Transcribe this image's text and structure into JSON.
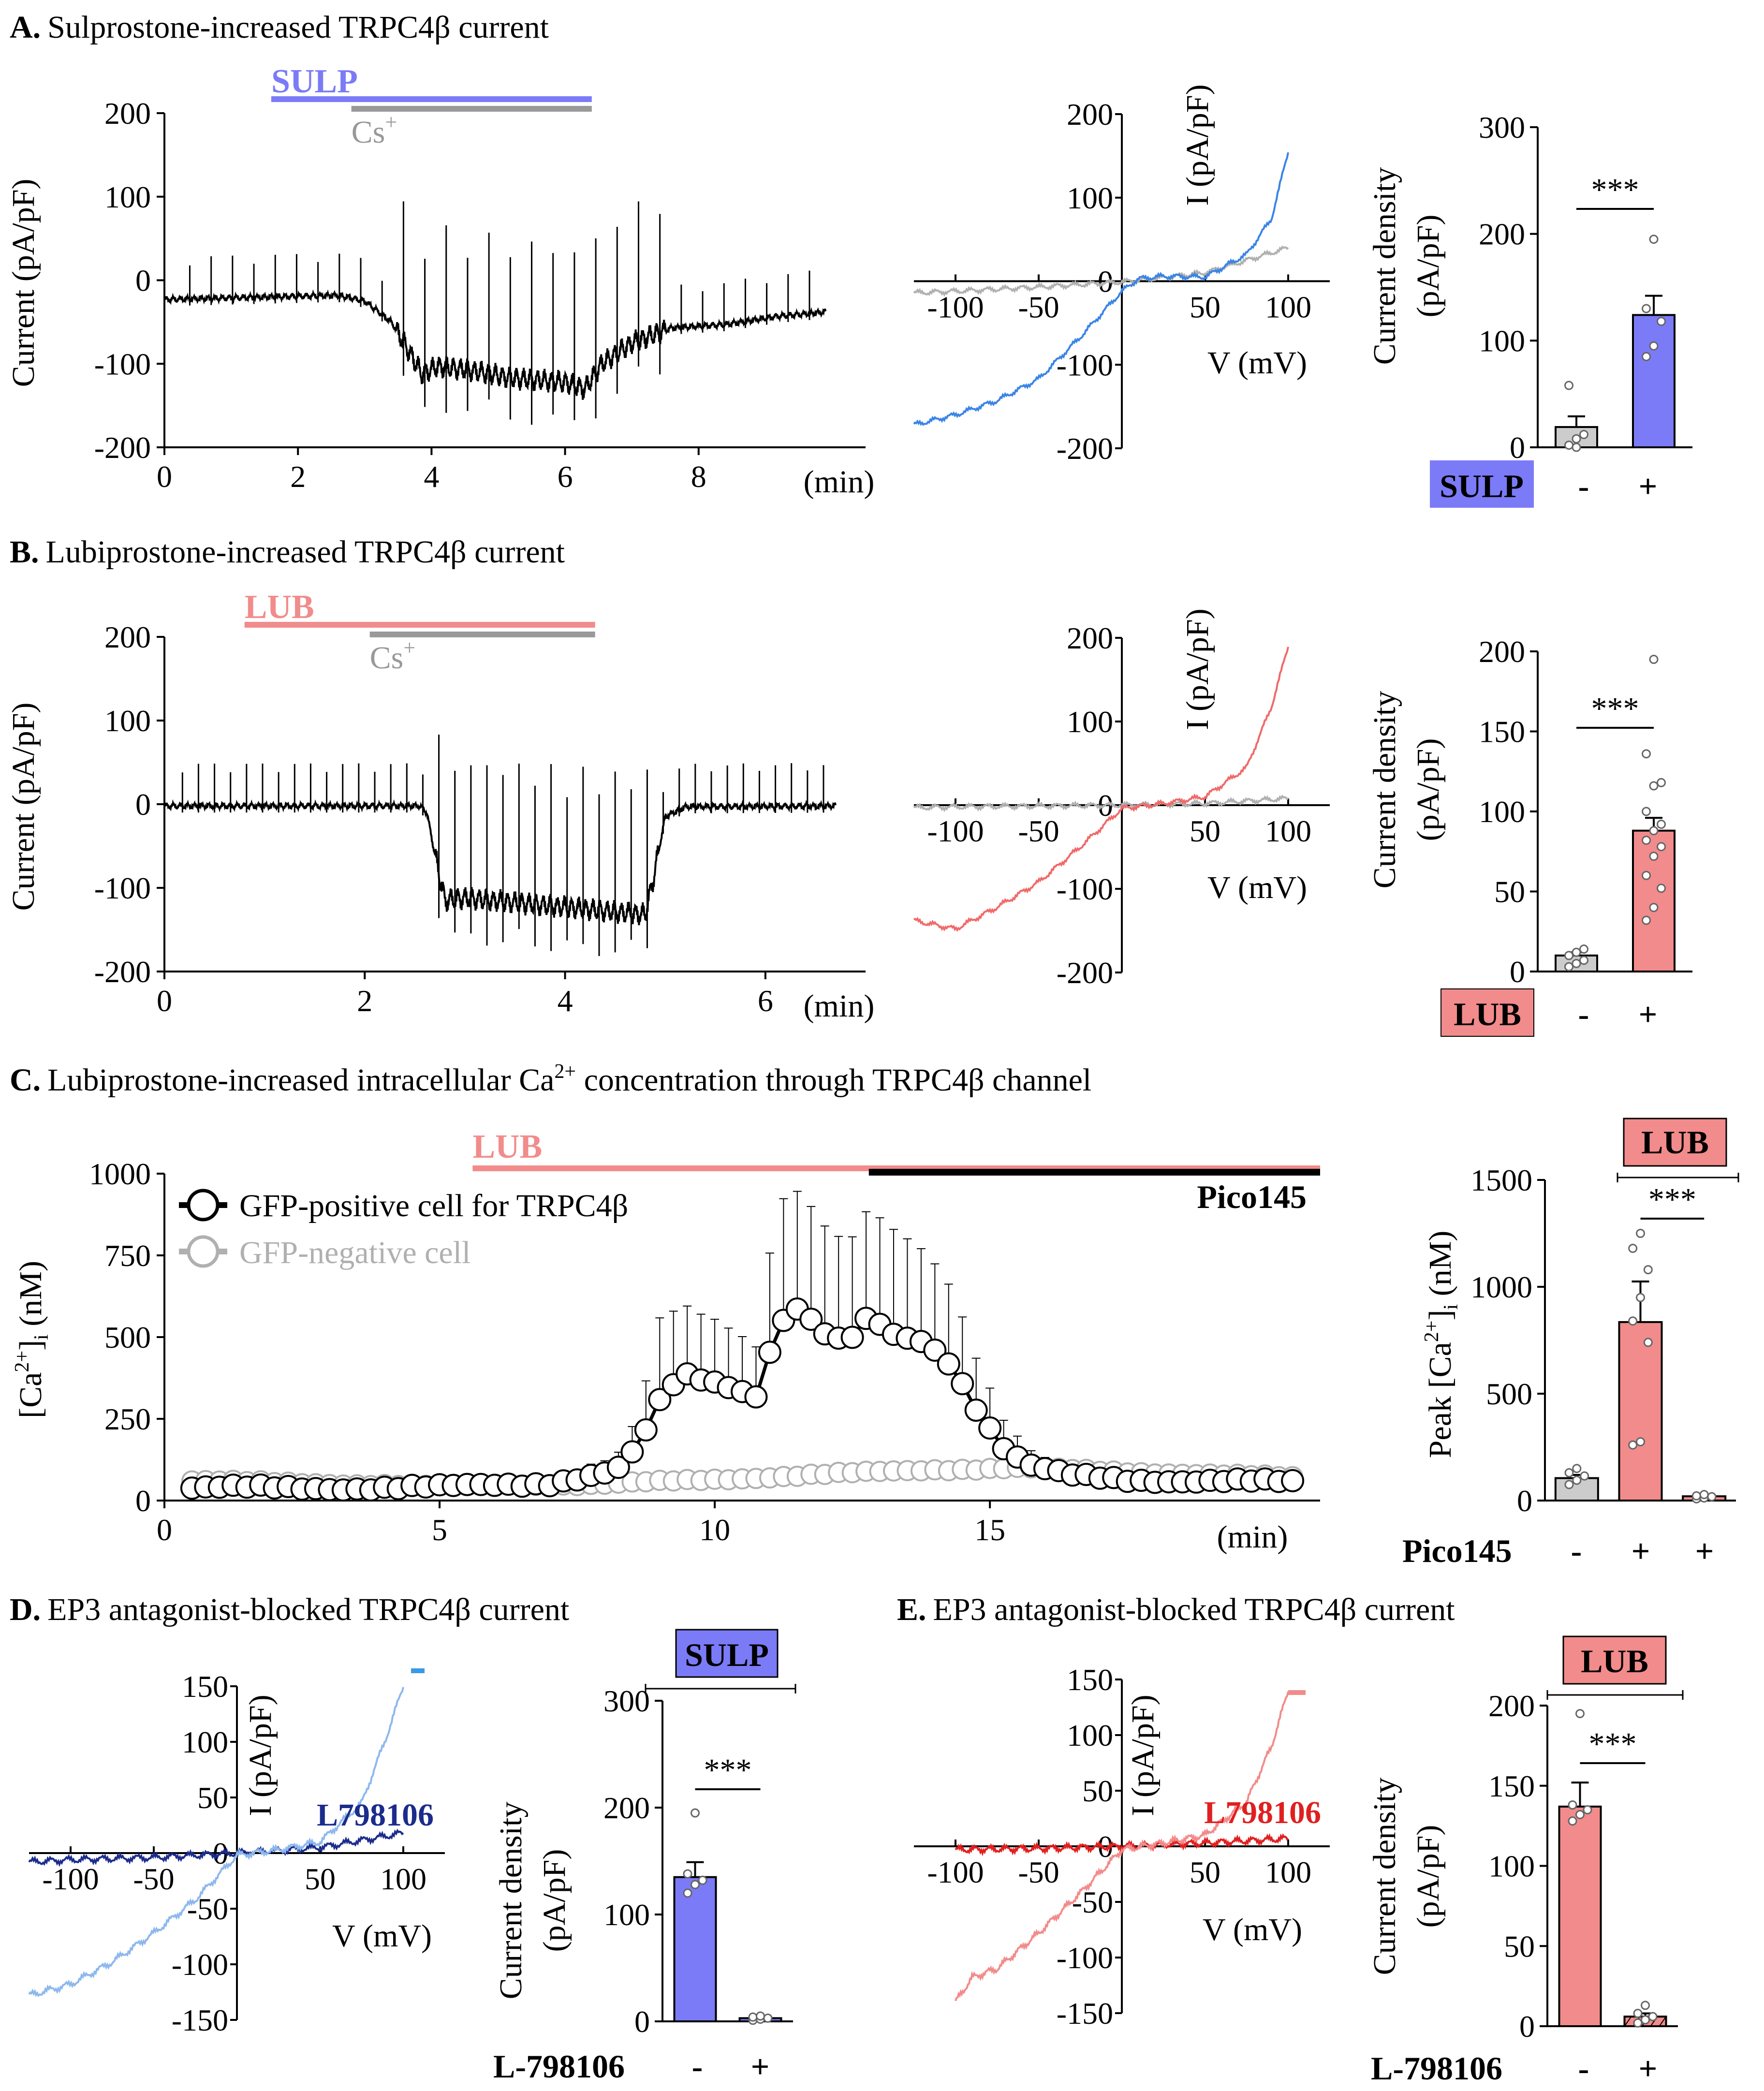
{
  "colors": {
    "sulp": "#7b7bf7",
    "sulp_trace": "#3a84e6",
    "lub": "#f28b8b",
    "lub_trace": "#f06a6a",
    "cs": "#999999",
    "black": "#000000",
    "gray_trace": "#b0b0b0",
    "gray_bar": "#cccccc",
    "navy": "#1c2c8c",
    "red_label": "#e02020",
    "light_trace": "#8db8ee"
  },
  "panels": {
    "A": {
      "letter": "A.",
      "title": "Sulprostone-increased TRPC4β current",
      "drug": "SULP",
      "cs": "Cs",
      "cs_sup": "+"
    },
    "B": {
      "letter": "B.",
      "title": "Lubiprostone-increased TRPC4β current",
      "drug": "LUB",
      "cs": "Cs",
      "cs_sup": "+"
    },
    "C": {
      "letter": "C.",
      "title_pre": "Lubiprostone-increased intracellular Ca",
      "title_sup": "2+",
      "title_post": " concentration through TRPC4β channel",
      "drug": "LUB",
      "inhibitor": "Pico145",
      "legend_pos": "GFP-positive cell for TRPC4β",
      "legend_neg": "GFP-negative cell"
    },
    "D": {
      "letter": "D.",
      "title": "EP3 antagonist-blocked TRPC4β current",
      "antagonist": "L798106",
      "box_label": "SULP"
    },
    "E": {
      "letter": "E.",
      "title": "EP3 antagonist-blocked TRPC4β current",
      "antagonist": "L798106",
      "box_label": "LUB"
    }
  },
  "axis_text": {
    "current_ylabel": "Current (pA/pF)",
    "iv_ylabel": "I (pA/pF)",
    "iv_xlabel": "V (mV)",
    "time_unit": "(min)",
    "density_l1": "Current density",
    "density_l2": "(pA/pF)",
    "ca_ylabel_pre": "[Ca",
    "ca_ylabel_sup": "2+",
    "ca_ylabel_mid": "]",
    "ca_ylabel_sub": "i",
    "ca_ylabel_post": " (nM)",
    "peak_pre": "Peak [Ca",
    "peak_sup": "2+",
    "peak_mid": "]",
    "peak_sub": "i",
    "peak_post": " (nM)",
    "sig": "***",
    "minus": "-",
    "plus": "+",
    "sulp_tag": "SULP",
    "lub_tag": "LUB",
    "pico_tag": "Pico145",
    "l798_tag": "L-798106"
  },
  "chart_data": [
    {
      "id": "A-trace",
      "type": "line",
      "title": "Sulprostone-increased TRPC4β current",
      "xlabel": "(min)",
      "ylabel": "Current (pA/pF)",
      "xlim": [
        0,
        10.5
      ],
      "ylim": [
        -200,
        200
      ],
      "xticks": [
        0,
        2,
        4,
        6,
        8
      ],
      "xticklabels": [
        "0",
        "2",
        "4",
        "6",
        "8"
      ],
      "yticks": [
        -200,
        -100,
        0,
        100,
        200
      ],
      "yticklabels": [
        "-200",
        "-100",
        "0",
        "100",
        "200"
      ],
      "bars": [
        {
          "label": "SULP",
          "x": [
            1.6,
            6.4
          ]
        },
        {
          "label": "Cs+",
          "x": [
            2.8,
            6.4
          ]
        }
      ],
      "baseline": [
        [
          0.0,
          -23
        ],
        [
          2.6,
          -18
        ],
        [
          3.0,
          -25
        ],
        [
          3.4,
          -50
        ],
        [
          3.7,
          -90
        ],
        [
          3.85,
          -112
        ],
        [
          4.1,
          -103
        ],
        [
          4.6,
          -108
        ],
        [
          5.2,
          -117
        ],
        [
          6.0,
          -122
        ],
        [
          6.3,
          -130
        ],
        [
          6.55,
          -100
        ],
        [
          7.0,
          -75
        ],
        [
          7.6,
          -57
        ],
        [
          8.4,
          -53
        ],
        [
          9.2,
          -43
        ],
        [
          9.9,
          -38
        ]
      ],
      "spike_period": 0.32,
      "spike_start": 0.38,
      "spike_end": 9.9
    },
    {
      "id": "A-iv",
      "type": "line",
      "xlabel": "V (mV)",
      "ylabel": "I (pA/pF)",
      "xlim": [
        -125,
        125
      ],
      "ylim": [
        -200,
        200
      ],
      "xticks": [
        -100,
        -50,
        50,
        100
      ],
      "xticklabels": [
        "-100",
        "-50",
        "50",
        "100"
      ],
      "yticks": [
        -200,
        -100,
        0,
        100,
        200
      ],
      "yticklabels": [
        "-200",
        "-100",
        "0",
        "100",
        "200"
      ],
      "series": [
        {
          "name": "SULP",
          "color": "#3a84e6",
          "x": [
            -125,
            -100,
            -75,
            -50,
            -25,
            0,
            10,
            25,
            50,
            75,
            90,
            100
          ],
          "y": [
            -172,
            -160,
            -143,
            -117,
            -67,
            -12,
            3,
            6,
            5,
            32,
            75,
            155
          ]
        },
        {
          "name": "Cs+",
          "color": "#b0b0b0",
          "x": [
            -125,
            -100,
            -50,
            0,
            50,
            100
          ],
          "y": [
            -14,
            -12,
            -7,
            -1,
            10,
            40
          ]
        }
      ]
    },
    {
      "id": "A-bar",
      "type": "bar",
      "ylabel": "Current density (pA/pF)",
      "ylim": [
        0,
        300
      ],
      "yticks": [
        0,
        100,
        200,
        300
      ],
      "yticklabels": [
        "0",
        "100",
        "200",
        "300"
      ],
      "categories": [
        "-",
        "+"
      ],
      "condition": "SULP",
      "values": [
        19,
        124
      ],
      "sem": [
        10,
        18
      ],
      "points": [
        [
          2,
          8,
          12,
          58,
          0
        ],
        [
          85,
          95,
          118,
          130,
          195
        ]
      ],
      "bar_colors": [
        "#cccccc",
        "#7b7bf7"
      ],
      "significance": "***"
    },
    {
      "id": "B-trace",
      "type": "line",
      "title": "Lubiprostone-increased TRPC4β current",
      "xlabel": "(min)",
      "ylabel": "Current (pA/pF)",
      "xlim": [
        0,
        7
      ],
      "ylim": [
        -200,
        200
      ],
      "xticks": [
        0,
        2,
        4,
        6
      ],
      "xticklabels": [
        "0",
        "2",
        "4",
        "6"
      ],
      "yticks": [
        -200,
        -100,
        0,
        100,
        200
      ],
      "yticklabels": [
        "-200",
        "-100",
        "0",
        "100",
        "200"
      ],
      "bars": [
        {
          "label": "LUB",
          "x": [
            0.8,
            4.3
          ]
        },
        {
          "label": "Cs+",
          "x": [
            2.05,
            4.3
          ]
        }
      ],
      "baseline": [
        [
          0,
          -2
        ],
        [
          2.55,
          -2
        ],
        [
          2.62,
          -10
        ],
        [
          2.7,
          -60
        ],
        [
          2.8,
          -115
        ],
        [
          3.0,
          -112
        ],
        [
          4.0,
          -123
        ],
        [
          4.8,
          -132
        ],
        [
          4.88,
          -90
        ],
        [
          5.0,
          -15
        ],
        [
          5.2,
          -3
        ],
        [
          6.8,
          -2
        ]
      ],
      "spike_period": 0.16,
      "spike_start": 0.18,
      "spike_end": 6.7
    },
    {
      "id": "B-iv",
      "type": "line",
      "xlabel": "V (mV)",
      "ylabel": "I (pA/pF)",
      "xlim": [
        -125,
        125
      ],
      "ylim": [
        -200,
        200
      ],
      "xticks": [
        -100,
        -50,
        50,
        100
      ],
      "xticklabels": [
        "-100",
        "-50",
        "50",
        "100"
      ],
      "yticks": [
        -200,
        -100,
        0,
        100,
        200
      ],
      "yticklabels": [
        "-200",
        "-100",
        "0",
        "100",
        "200"
      ],
      "series": [
        {
          "name": "LUB",
          "color": "#f06a6a",
          "x": [
            -125,
            -100,
            -75,
            -50,
            -25,
            0,
            25,
            50,
            75,
            90,
            100
          ],
          "y": [
            -138,
            -148,
            -122,
            -92,
            -50,
            -4,
            2,
            10,
            45,
            118,
            190
          ]
        },
        {
          "name": "Cs+",
          "color": "#b0b0b0",
          "x": [
            -125,
            -100,
            0,
            50,
            100
          ],
          "y": [
            -3,
            -2,
            0,
            2,
            8
          ]
        }
      ]
    },
    {
      "id": "B-bar",
      "type": "bar",
      "ylabel": "Current density (pA/pF)",
      "ylim": [
        0,
        200
      ],
      "yticks": [
        0,
        50,
        100,
        150,
        200
      ],
      "yticklabels": [
        "0",
        "50",
        "100",
        "150",
        "200"
      ],
      "categories": [
        "-",
        "+"
      ],
      "condition": "LUB",
      "values": [
        10,
        88
      ],
      "sem": [
        2,
        8
      ],
      "points": [
        [
          3,
          5,
          7,
          10,
          12,
          14
        ],
        [
          32,
          40,
          52,
          60,
          72,
          78,
          82,
          88,
          92,
          100,
          116,
          118,
          136,
          195
        ]
      ],
      "bar_colors": [
        "#cccccc",
        "#f28b8b"
      ],
      "significance": "***"
    },
    {
      "id": "C-trace",
      "type": "scatter",
      "title": "Lubiprostone-increased intracellular Ca2+ concentration through TRPC4β channel",
      "xlabel": "(min)",
      "ylabel": "[Ca2+]i (nM)",
      "xlim": [
        0,
        21
      ],
      "ylim": [
        0,
        1000
      ],
      "xticks": [
        0,
        5,
        10,
        15
      ],
      "xticklabels": [
        "0",
        "5",
        "10",
        "15"
      ],
      "yticks": [
        0,
        250,
        500,
        750,
        1000
      ],
      "yticklabels": [
        "0",
        "250",
        "500",
        "750",
        "1000"
      ],
      "bars": [
        {
          "label": "LUB",
          "x": [
            5.6,
            21
          ]
        },
        {
          "label": "Pico145",
          "x": [
            12.8,
            21
          ]
        }
      ],
      "series": [
        {
          "name": "GFP-positive cell for TRPC4β",
          "color": "#000000",
          "x": [
            0.5,
            5,
            7,
            8.2,
            8.6,
            9,
            9.4,
            9.8,
            10.3,
            10.8,
            11.1,
            11.5,
            12,
            12.4,
            12.8,
            13.3,
            13.8,
            14.3,
            14.8,
            15.3,
            15.8,
            16.5,
            17.5,
            19,
            20.5
          ],
          "y": [
            38,
            40,
            55,
            90,
            160,
            300,
            385,
            370,
            350,
            320,
            530,
            590,
            510,
            475,
            560,
            500,
            490,
            420,
            270,
            150,
            100,
            75,
            65,
            60,
            55
          ],
          "err": [
            20,
            20,
            25,
            40,
            90,
            250,
            210,
            200,
            180,
            150,
            380,
            360,
            330,
            300,
            330,
            320,
            280,
            240,
            150,
            80,
            40,
            20,
            15,
            15,
            15
          ]
        },
        {
          "name": "GFP-negative cell",
          "color": "#b0b0b0",
          "x": [
            0.5,
            5,
            8,
            10,
            12,
            14,
            15.5,
            17,
            19,
            20.5
          ],
          "y": [
            60,
            45,
            50,
            65,
            80,
            95,
            100,
            90,
            80,
            70
          ]
        }
      ]
    },
    {
      "id": "C-bar",
      "type": "bar",
      "ylabel": "Peak [Ca2+]i (nM)",
      "ylim": [
        0,
        1500
      ],
      "yticks": [
        0,
        500,
        1000,
        1500
      ],
      "yticklabels": [
        "0",
        "500",
        "1000",
        "1500"
      ],
      "categories": [
        "-",
        "+",
        "+"
      ],
      "condition": "Pico145",
      "values": [
        105,
        835,
        20
      ],
      "sem": [
        15,
        190,
        5
      ],
      "points": [
        [
          75,
          95,
          115,
          130,
          150
        ],
        [
          260,
          275,
          740,
          840,
          950,
          1080,
          1180,
          1250
        ],
        [
          8,
          12,
          18,
          22,
          28
        ]
      ],
      "bar_colors": [
        "#cccccc",
        "#f28b8b",
        "#f28b8b"
      ],
      "significance": "***"
    },
    {
      "id": "D-iv",
      "type": "line",
      "xlabel": "V (mV)",
      "ylabel": "I (pA/pF)",
      "xlim": [
        -125,
        125
      ],
      "ylim": [
        -150,
        150
      ],
      "xticks": [
        -100,
        -50,
        50,
        100
      ],
      "xticklabels": [
        "-100",
        "-50",
        "50",
        "100"
      ],
      "yticks": [
        -150,
        -100,
        -50,
        50,
        100,
        150
      ],
      "yticklabels": [
        "-150",
        "-100",
        "-50",
        "50",
        "100",
        "150"
      ],
      "series": [
        {
          "name": "SULP",
          "color": "#8db8ee",
          "x": [
            -125,
            -100,
            -75,
            -50,
            -25,
            0,
            25,
            50,
            75,
            90,
            100
          ],
          "y": [
            -128,
            -118,
            -98,
            -72,
            -42,
            -2,
            3,
            10,
            45,
            105,
            150
          ]
        },
        {
          "name": "L798106",
          "color": "#1c2c8c",
          "x": [
            -125,
            -100,
            -50,
            0,
            50,
            100
          ],
          "y": [
            -8,
            -6,
            -4,
            0,
            5,
            18
          ]
        }
      ]
    },
    {
      "id": "D-bar",
      "type": "bar",
      "ylabel": "Current density (pA/pF)",
      "ylim": [
        0,
        300
      ],
      "yticks": [
        0,
        100,
        200,
        300
      ],
      "yticklabels": [
        "0",
        "100",
        "200",
        "300"
      ],
      "categories": [
        "-",
        "+"
      ],
      "condition": "L-798106",
      "values": [
        135,
        3
      ],
      "sem": [
        14,
        1
      ],
      "points": [
        [
          120,
          128,
          132,
          138,
          195
        ],
        [
          1,
          2,
          3,
          4,
          5
        ]
      ],
      "bar_colors": [
        "#7b7bf7",
        "#7b7bf7"
      ],
      "significance": "***"
    },
    {
      "id": "E-iv",
      "type": "line",
      "xlabel": "V (mV)",
      "ylabel": "I (pA/pF)",
      "xlim": [
        -125,
        125
      ],
      "ylim": [
        -150,
        150
      ],
      "xticks": [
        -100,
        -50,
        50,
        100
      ],
      "xticklabels": [
        "-100",
        "-50",
        "50",
        "100"
      ],
      "yticks": [
        -150,
        -100,
        -50,
        50,
        100,
        150
      ],
      "yticklabels": [
        "-150",
        "-100",
        "-50",
        "50",
        "100",
        "150"
      ],
      "series": [
        {
          "name": "LUB",
          "color": "#f28b8b",
          "x": [
            -100,
            -90,
            -75,
            -50,
            -25,
            0,
            25,
            50,
            75,
            90,
            100
          ],
          "y": [
            -140,
            -118,
            -110,
            -78,
            -42,
            -3,
            3,
            10,
            40,
            90,
            140
          ]
        },
        {
          "name": "L798106",
          "color": "#e02020",
          "x": [
            -100,
            -50,
            0,
            50,
            100
          ],
          "y": [
            -3,
            -2,
            0,
            3,
            7
          ]
        }
      ]
    },
    {
      "id": "E-bar",
      "type": "bar",
      "ylabel": "Current density (pA/pF)",
      "ylim": [
        0,
        200
      ],
      "yticks": [
        0,
        50,
        100,
        150,
        200
      ],
      "yticklabels": [
        "0",
        "50",
        "100",
        "150",
        "200"
      ],
      "categories": [
        "-",
        "+"
      ],
      "condition": "L-798106",
      "values": [
        137,
        6
      ],
      "sem": [
        15,
        2
      ],
      "points": [
        [
          128,
          132,
          135,
          138,
          195
        ],
        [
          2,
          4,
          6,
          8,
          13
        ]
      ],
      "bar_colors": [
        "#f28b8b",
        "#f28b8b"
      ],
      "significance": "***"
    }
  ]
}
